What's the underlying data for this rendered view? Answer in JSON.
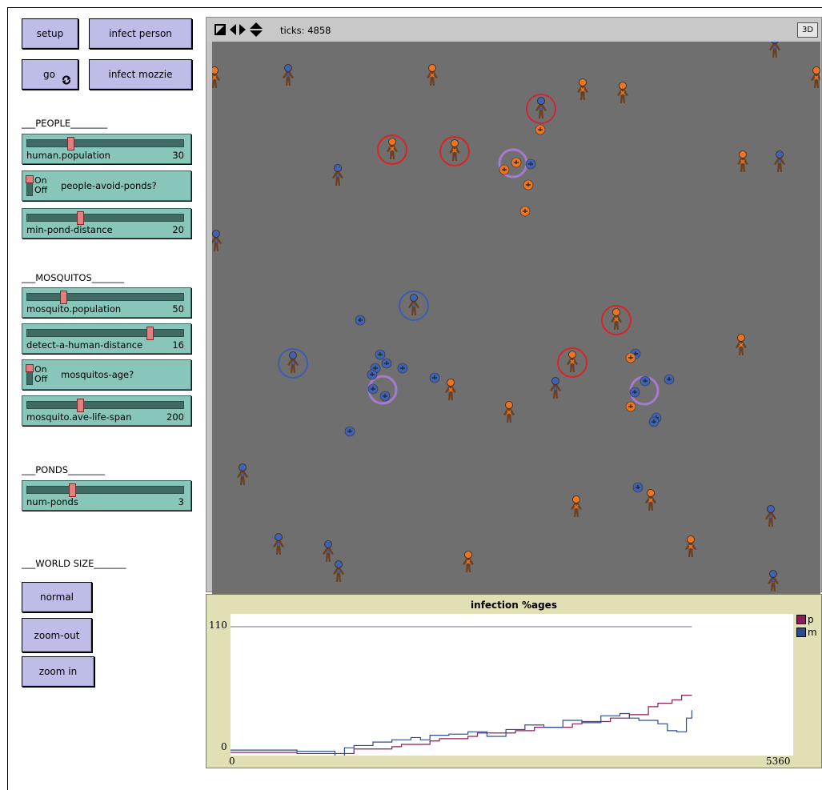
{
  "buttons": {
    "setup": "setup",
    "infect_person": "infect person",
    "go": "go",
    "infect_mozzie": "infect mozzie",
    "normal": "normal",
    "zoom_out": "zoom-out",
    "zoom_in": "zoom in"
  },
  "sections": {
    "people": "___PEOPLE________",
    "mosquitos": "___MOSQUITOS_______",
    "ponds": "___PONDS________",
    "world_size": "___WORLD SIZE_______"
  },
  "sliders": {
    "human_population": {
      "label": "human.population",
      "value": "30",
      "fraction": 0.27
    },
    "min_pond_distance": {
      "label": "min-pond-distance",
      "value": "20",
      "fraction": 0.33
    },
    "mosquito_population": {
      "label": "mosquito.population",
      "value": "50",
      "fraction": 0.22
    },
    "detect_a_human_distance": {
      "label": "detect-a-human-distance",
      "value": "16",
      "fraction": 0.79
    },
    "mosquito_ave_life_span": {
      "label": "mosquito.ave-life-span",
      "value": "200",
      "fraction": 0.33
    },
    "num_ponds": {
      "label": "num-ponds",
      "value": "3",
      "fraction": 0.28
    }
  },
  "switches": {
    "people_avoid_ponds": {
      "label": "people-avoid-ponds?",
      "on": "On",
      "off": "Off",
      "state": "on"
    },
    "mosquitos_age": {
      "label": "mosquitos-age?",
      "on": "On",
      "off": "Off",
      "state": "on"
    }
  },
  "view": {
    "ticks_label": "ticks: 4858",
    "three_d_label": "3D",
    "icons": [
      "orientation-icon",
      "horizontal-arrows-icon",
      "vertical-arrows-icon"
    ]
  },
  "plot": {
    "title": "infection %ages",
    "y_max_label": "110",
    "y_min_label": "0",
    "x_min_label": "0",
    "x_max_label": "5360",
    "legend": [
      {
        "name": "p",
        "color": "#8e1b5a"
      },
      {
        "name": "m",
        "color": "#2c4d8c"
      }
    ]
  },
  "chart_data": {
    "type": "line",
    "title": "infection %ages",
    "xlim": [
      0,
      5360
    ],
    "ylim": [
      0,
      110
    ],
    "series": [
      {
        "name": "p",
        "color": "#8e1b5a",
        "x": [
          0,
          600,
          700,
          1200,
          1300,
          1700,
          1800,
          2100,
          2200,
          2500,
          2600,
          3000,
          3200,
          3600,
          3700,
          4000,
          4200,
          4400,
          4500,
          4650,
          4750,
          4858
        ],
        "y": [
          0,
          0,
          -1,
          -1,
          3,
          5,
          7,
          10,
          12,
          14,
          17,
          19,
          22,
          25,
          27,
          30,
          33,
          40,
          43,
          46,
          50,
          50
        ]
      },
      {
        "name": "m",
        "color": "#2c4d8c",
        "x": [
          0,
          300,
          700,
          1100,
          1200,
          1300,
          1500,
          1700,
          1900,
          2000,
          2100,
          2300,
          2500,
          2700,
          2900,
          3100,
          3300,
          3500,
          3700,
          3900,
          4100,
          4200,
          4300,
          4500,
          4600,
          4700,
          4800,
          4858
        ],
        "y": [
          2,
          2,
          1,
          -4,
          4,
          6,
          9,
          11,
          13,
          11,
          15,
          16,
          18,
          14,
          20,
          24,
          22,
          28,
          26,
          32,
          34,
          30,
          28,
          25,
          19,
          18,
          30,
          37
        ]
      }
    ]
  },
  "agents": {
    "people": [
      {
        "x": 360,
        "y": 95,
        "type": "healthy"
      },
      {
        "x": 540,
        "y": 95,
        "type": "sick"
      },
      {
        "x": 728,
        "y": 113,
        "type": "sick"
      },
      {
        "x": 778,
        "y": 117,
        "type": "sick"
      },
      {
        "x": 676,
        "y": 136,
        "type": "healthy",
        "ring": "#c9283b"
      },
      {
        "x": 490,
        "y": 187,
        "type": "sick",
        "ring": "#d22"
      },
      {
        "x": 568,
        "y": 189,
        "type": "sick",
        "ring": "#d22"
      },
      {
        "x": 422,
        "y": 220,
        "type": "healthy"
      },
      {
        "x": 928,
        "y": 203,
        "type": "sick"
      },
      {
        "x": 974,
        "y": 203,
        "type": "healthy"
      },
      {
        "x": 270,
        "y": 302,
        "type": "healthy"
      },
      {
        "x": 517,
        "y": 382,
        "type": "healthy",
        "ring": "#3c5db0"
      },
      {
        "x": 770,
        "y": 400,
        "type": "sick",
        "ring": "#d22"
      },
      {
        "x": 926,
        "y": 432,
        "type": "sick"
      },
      {
        "x": 366,
        "y": 454,
        "type": "healthy",
        "ring": "#3c5db0"
      },
      {
        "x": 715,
        "y": 453,
        "type": "sick",
        "ring": "#d22"
      },
      {
        "x": 563,
        "y": 488,
        "type": "sick"
      },
      {
        "x": 694,
        "y": 486,
        "type": "healthy"
      },
      {
        "x": 636,
        "y": 516,
        "type": "sick"
      },
      {
        "x": 303,
        "y": 594,
        "type": "healthy"
      },
      {
        "x": 813,
        "y": 626,
        "type": "sick"
      },
      {
        "x": 720,
        "y": 634,
        "type": "sick"
      },
      {
        "x": 963,
        "y": 646,
        "type": "healthy"
      },
      {
        "x": 348,
        "y": 681,
        "type": "healthy"
      },
      {
        "x": 410,
        "y": 690,
        "type": "healthy"
      },
      {
        "x": 863,
        "y": 684,
        "type": "sick"
      },
      {
        "x": 585,
        "y": 703,
        "type": "sick"
      },
      {
        "x": 423,
        "y": 715,
        "type": "healthy"
      },
      {
        "x": 966,
        "y": 727,
        "type": "healthy"
      },
      {
        "x": 968,
        "y": 60,
        "type": "healthy"
      },
      {
        "x": 268,
        "y": 98,
        "type": "sick"
      },
      {
        "x": 1020,
        "y": 98,
        "type": "sick"
      }
    ],
    "mosquitos": [
      {
        "x": 675,
        "y": 162,
        "type": "sick"
      },
      {
        "x": 630,
        "y": 212,
        "type": "sick"
      },
      {
        "x": 645,
        "y": 203,
        "type": "sick"
      },
      {
        "x": 663,
        "y": 205,
        "type": "healthy"
      },
      {
        "x": 660,
        "y": 231,
        "type": "sick"
      },
      {
        "x": 656,
        "y": 264,
        "type": "sick"
      },
      {
        "x": 450,
        "y": 400,
        "type": "healthy"
      },
      {
        "x": 475,
        "y": 443,
        "type": "healthy"
      },
      {
        "x": 483,
        "y": 454,
        "type": "healthy"
      },
      {
        "x": 469,
        "y": 460,
        "type": "healthy"
      },
      {
        "x": 503,
        "y": 460,
        "type": "healthy"
      },
      {
        "x": 465,
        "y": 468,
        "type": "healthy"
      },
      {
        "x": 543,
        "y": 472,
        "type": "healthy"
      },
      {
        "x": 466,
        "y": 486,
        "type": "healthy"
      },
      {
        "x": 481,
        "y": 495,
        "type": "healthy"
      },
      {
        "x": 437,
        "y": 539,
        "type": "healthy"
      },
      {
        "x": 794,
        "y": 442,
        "type": "healthy"
      },
      {
        "x": 788,
        "y": 447,
        "type": "sick"
      },
      {
        "x": 806,
        "y": 476,
        "type": "healthy"
      },
      {
        "x": 836,
        "y": 474,
        "type": "healthy"
      },
      {
        "x": 793,
        "y": 490,
        "type": "healthy"
      },
      {
        "x": 788,
        "y": 508,
        "type": "sick"
      },
      {
        "x": 820,
        "y": 522,
        "type": "healthy"
      },
      {
        "x": 817,
        "y": 527,
        "type": "healthy"
      },
      {
        "x": 797,
        "y": 609,
        "type": "healthy"
      }
    ],
    "purple_rings": [
      {
        "x": 641,
        "y": 204,
        "r": 17
      },
      {
        "x": 478,
        "y": 487,
        "r": 17
      },
      {
        "x": 805,
        "y": 488,
        "r": 17
      }
    ]
  }
}
